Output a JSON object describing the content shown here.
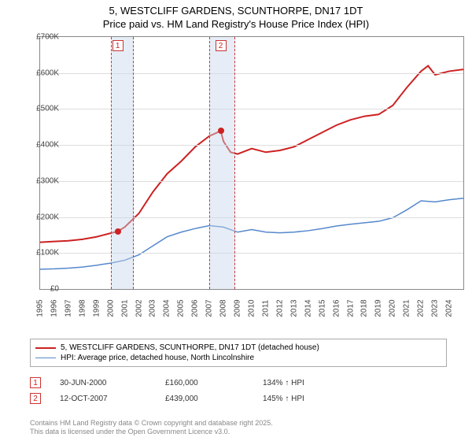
{
  "title": {
    "line1": "5, WESTCLIFF GARDENS, SCUNTHORPE, DN17 1DT",
    "line2": "Price paid vs. HM Land Registry's House Price Index (HPI)"
  },
  "chart": {
    "type": "line",
    "background_color": "#ffffff",
    "border_color": "#888888",
    "grid_color": "#dddddd",
    "y": {
      "min": 0,
      "max": 700000,
      "step": 100000,
      "labels": [
        "£0",
        "£100K",
        "£200K",
        "£300K",
        "£400K",
        "£500K",
        "£600K",
        "£700K"
      ]
    },
    "x": {
      "min": 1995,
      "max": 2025,
      "step": 1,
      "labels": [
        "1995",
        "1996",
        "1997",
        "1998",
        "1999",
        "2000",
        "2001",
        "2002",
        "2003",
        "2004",
        "2005",
        "2006",
        "2007",
        "2008",
        "2009",
        "2010",
        "2011",
        "2012",
        "2013",
        "2014",
        "2015",
        "2016",
        "2017",
        "2018",
        "2019",
        "2020",
        "2021",
        "2022",
        "2023",
        "2024"
      ]
    },
    "shaded_bands": [
      {
        "start": 2000.0,
        "end": 2001.5
      },
      {
        "start": 2007.0,
        "end": 2008.7
      }
    ],
    "markers": [
      {
        "id": "1",
        "x": 2000.5,
        "y_top": true
      },
      {
        "id": "2",
        "x": 2007.8,
        "y_top": true
      }
    ],
    "points": [
      {
        "x": 2000.5,
        "y": 160000
      },
      {
        "x": 2007.8,
        "y": 439000
      }
    ],
    "series": [
      {
        "name": "5, WESTCLIFF GARDENS, SCUNTHORPE, DN17 1DT (detached house)",
        "color": "#cc2222",
        "width": 2,
        "data": [
          [
            1995,
            130000
          ],
          [
            1996,
            132000
          ],
          [
            1997,
            134000
          ],
          [
            1998,
            138000
          ],
          [
            1999,
            145000
          ],
          [
            2000,
            155000
          ],
          [
            2000.5,
            160000
          ],
          [
            2001,
            172000
          ],
          [
            2002,
            210000
          ],
          [
            2003,
            270000
          ],
          [
            2004,
            320000
          ],
          [
            2005,
            355000
          ],
          [
            2006,
            395000
          ],
          [
            2007,
            425000
          ],
          [
            2007.8,
            439000
          ],
          [
            2008,
            410000
          ],
          [
            2008.5,
            380000
          ],
          [
            2009,
            375000
          ],
          [
            2010,
            390000
          ],
          [
            2011,
            380000
          ],
          [
            2012,
            385000
          ],
          [
            2013,
            395000
          ],
          [
            2014,
            415000
          ],
          [
            2015,
            435000
          ],
          [
            2016,
            455000
          ],
          [
            2017,
            470000
          ],
          [
            2018,
            480000
          ],
          [
            2019,
            485000
          ],
          [
            2020,
            510000
          ],
          [
            2021,
            560000
          ],
          [
            2022,
            605000
          ],
          [
            2022.5,
            620000
          ],
          [
            2023,
            595000
          ],
          [
            2024,
            605000
          ],
          [
            2025,
            610000
          ]
        ]
      },
      {
        "name": "HPI: Average price, detached house, North Lincolnshire",
        "color": "#5588cc",
        "width": 1.5,
        "data": [
          [
            1995,
            55000
          ],
          [
            1996,
            56000
          ],
          [
            1997,
            58000
          ],
          [
            1998,
            61000
          ],
          [
            1999,
            66000
          ],
          [
            2000,
            72000
          ],
          [
            2001,
            80000
          ],
          [
            2002,
            95000
          ],
          [
            2003,
            120000
          ],
          [
            2004,
            145000
          ],
          [
            2005,
            158000
          ],
          [
            2006,
            168000
          ],
          [
            2007,
            176000
          ],
          [
            2008,
            172000
          ],
          [
            2009,
            158000
          ],
          [
            2010,
            165000
          ],
          [
            2011,
            158000
          ],
          [
            2012,
            156000
          ],
          [
            2013,
            158000
          ],
          [
            2014,
            162000
          ],
          [
            2015,
            168000
          ],
          [
            2016,
            175000
          ],
          [
            2017,
            180000
          ],
          [
            2018,
            184000
          ],
          [
            2019,
            188000
          ],
          [
            2020,
            198000
          ],
          [
            2021,
            220000
          ],
          [
            2022,
            245000
          ],
          [
            2023,
            242000
          ],
          [
            2024,
            248000
          ],
          [
            2025,
            252000
          ]
        ]
      }
    ]
  },
  "legend": {
    "items": [
      {
        "color": "#cc2222",
        "width": 2,
        "label": "5, WESTCLIFF GARDENS, SCUNTHORPE, DN17 1DT (detached house)"
      },
      {
        "color": "#5588cc",
        "width": 1.5,
        "label": "HPI: Average price, detached house, North Lincolnshire"
      }
    ]
  },
  "table": {
    "rows": [
      {
        "idx": "1",
        "date": "30-JUN-2000",
        "price": "£160,000",
        "delta": "134% ↑ HPI"
      },
      {
        "idx": "2",
        "date": "12-OCT-2007",
        "price": "£439,000",
        "delta": "145% ↑ HPI"
      }
    ]
  },
  "footer": {
    "line1": "Contains HM Land Registry data © Crown copyright and database right 2025.",
    "line2": "This data is licensed under the Open Government Licence v3.0."
  }
}
